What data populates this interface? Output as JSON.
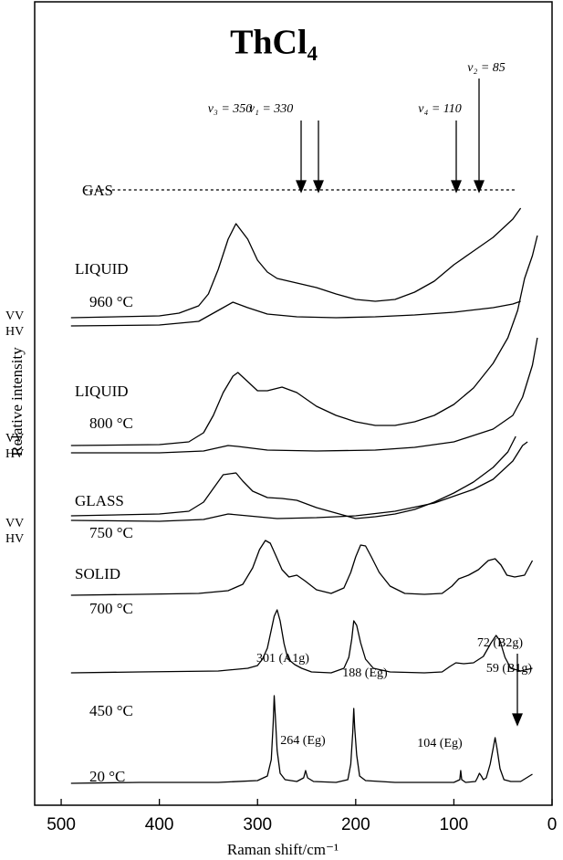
{
  "chart_data": {
    "type": "line",
    "title": "ThCl₄",
    "x_label": "Raman shift/cm⁻¹",
    "y_label": "Relative intensity",
    "xlim": [
      527,
      0
    ],
    "xticks": [
      500,
      400,
      300,
      200,
      100,
      0
    ],
    "ylim": [
      0,
      880
    ],
    "color": "#000000",
    "annotations": [
      "ν₃ = 350",
      "ν₁ = 330",
      "ν₄ = 110",
      "ν₂ = 85",
      "GAS",
      "LIQUID",
      "960 °C",
      "VV",
      "HV",
      "LIQUID",
      "800 °C",
      "VV",
      "HV",
      "GLASS",
      "750 °C",
      "VV",
      "HV",
      "SOLID",
      "700 °C",
      "450 °C",
      "301 (A1g)",
      "264 (Eg)",
      "188 (Eg)",
      "104 (Eg)",
      "72 (B2g)",
      "59 (B1g)",
      "20 °C"
    ],
    "series": [
      {
        "style": "dashed",
        "x": [
          476,
          36
        ],
        "values": [
          674,
          674
        ]
      },
      {
        "style": "solid",
        "x": [
          490,
          400,
          380,
          360,
          350,
          340,
          330,
          322,
          310,
          300,
          290,
          280,
          260,
          240,
          220,
          200,
          180,
          160,
          140,
          120,
          100,
          80,
          60,
          40,
          32
        ],
        "values": [
          534,
          536,
          539,
          547,
          560,
          587,
          620,
          637,
          620,
          597,
          584,
          577,
          572,
          567,
          560,
          554,
          552,
          554,
          562,
          574,
          592,
          607,
          622,
          642,
          654
        ]
      },
      {
        "style": "solid",
        "x": [
          490,
          400,
          360,
          340,
          325,
          310,
          290,
          260,
          220,
          180,
          140,
          100,
          60,
          40,
          32
        ],
        "values": [
          525,
          526,
          530,
          542,
          551,
          545,
          538,
          535,
          534,
          535,
          537,
          540,
          545,
          549,
          552
        ]
      },
      {
        "style": "solid",
        "x": [
          490,
          400,
          370,
          355,
          345,
          335,
          325,
          320,
          310,
          300,
          290,
          275,
          260,
          240,
          220,
          200,
          180,
          160,
          140,
          120,
          100,
          80,
          60,
          45,
          35,
          28,
          20,
          15
        ],
        "values": [
          394,
          395,
          398,
          408,
          427,
          452,
          470,
          474,
          464,
          454,
          454,
          458,
          452,
          437,
          427,
          420,
          416,
          416,
          420,
          427,
          439,
          457,
          484,
          512,
          542,
          577,
          602,
          624
        ]
      },
      {
        "style": "solid",
        "x": [
          490,
          400,
          355,
          330,
          320,
          290,
          240,
          180,
          140,
          100,
          60,
          40,
          30,
          20,
          15
        ],
        "values": [
          386,
          386,
          388,
          394,
          393,
          389,
          388,
          389,
          392,
          398,
          412,
          427,
          447,
          482,
          512
        ]
      },
      {
        "style": "solid",
        "x": [
          490,
          400,
          370,
          355,
          345,
          335,
          322,
          315,
          305,
          290,
          275,
          260,
          240,
          220,
          200,
          180,
          160,
          140,
          120,
          100,
          80,
          60,
          45,
          37
        ],
        "values": [
          317,
          319,
          322,
          332,
          347,
          362,
          364,
          355,
          344,
          337,
          336,
          334,
          326,
          320,
          314,
          316,
          319,
          324,
          332,
          342,
          354,
          370,
          387,
          404
        ]
      },
      {
        "style": "solid",
        "x": [
          490,
          400,
          355,
          330,
          310,
          280,
          240,
          200,
          160,
          120,
          80,
          60,
          40,
          30,
          25
        ],
        "values": [
          312,
          311,
          313,
          319,
          317,
          314,
          315,
          317,
          322,
          331,
          346,
          357,
          377,
          394,
          398
        ]
      },
      {
        "style": "solid",
        "x": [
          490,
          420,
          360,
          330,
          315,
          305,
          298,
          292,
          287,
          282,
          275,
          268,
          260,
          252,
          240,
          225,
          212,
          205,
          200,
          195,
          190,
          184,
          176,
          165,
          150,
          130,
          112,
          102,
          95,
          85,
          75,
          65,
          58,
          52,
          46,
          38,
          28,
          20
        ],
        "values": [
          230,
          231,
          232,
          235,
          242,
          260,
          280,
          290,
          287,
          275,
          258,
          250,
          252,
          246,
          236,
          232,
          238,
          255,
          272,
          285,
          284,
          272,
          255,
          240,
          232,
          231,
          232,
          240,
          248,
          252,
          258,
          268,
          270,
          263,
          252,
          250,
          252,
          268
        ]
      },
      {
        "style": "solid",
        "x": [
          490,
          420,
          340,
          310,
          300,
          295,
          290,
          286,
          283,
          280,
          277,
          273,
          269,
          262,
          255,
          245,
          225,
          212,
          207,
          204,
          202,
          199,
          195,
          190,
          182,
          165,
          130,
          112,
          104,
          98,
          90,
          80,
          70,
          62,
          57,
          53,
          48,
          42,
          32,
          20
        ],
        "values": [
          145,
          146,
          147,
          150,
          153,
          160,
          172,
          192,
          207,
          214,
          202,
          177,
          160,
          154,
          150,
          146,
          145,
          150,
          162,
          182,
          202,
          197,
          178,
          160,
          150,
          146,
          145,
          146,
          152,
          156,
          155,
          156,
          163,
          178,
          186,
          180,
          162,
          150,
          147,
          150
        ]
      },
      {
        "style": "solid",
        "x": [
          490,
          420,
          340,
          300,
          290,
          286,
          284,
          283,
          282,
          280,
          277,
          272,
          260,
          253,
          251,
          249,
          243,
          220,
          208,
          205,
          203,
          202,
          201,
          199,
          196,
          190,
          160,
          120,
          100,
          94,
          93,
          92,
          88,
          78,
          76,
          74,
          72,
          70,
          67,
          63,
          60,
          58,
          56,
          53,
          49,
          42,
          32,
          20
        ],
        "values": [
          24,
          25,
          25,
          27,
          32,
          50,
          90,
          120,
          100,
          60,
          35,
          28,
          26,
          30,
          38,
          30,
          26,
          25,
          28,
          45,
          80,
          106,
          85,
          55,
          32,
          27,
          25,
          25,
          25,
          28,
          38,
          28,
          25,
          26,
          30,
          35,
          32,
          28,
          30,
          45,
          62,
          74,
          62,
          40,
          28,
          26,
          26,
          34
        ]
      }
    ]
  }
}
